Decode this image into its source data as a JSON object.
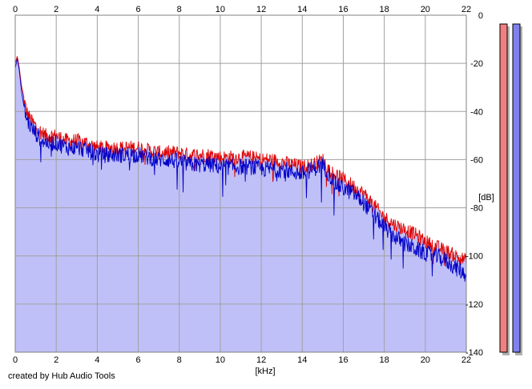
{
  "chart_data": {
    "type": "area",
    "xlabel": "[kHz]",
    "ylabel": "[dB]",
    "xlim": [
      0,
      22
    ],
    "ylim": [
      -140,
      0
    ],
    "x_ticks": [
      0,
      2,
      4,
      6,
      8,
      10,
      12,
      14,
      16,
      18,
      20,
      22
    ],
    "y_ticks": [
      0,
      -20,
      -40,
      -60,
      -80,
      -100,
      -120,
      -140
    ],
    "grid": true,
    "series": [
      {
        "color": "#e00000",
        "points": [
          [
            0.0,
            -20
          ],
          [
            0.1,
            -17
          ],
          [
            0.2,
            -22
          ],
          [
            0.3,
            -29
          ],
          [
            0.4,
            -34
          ],
          [
            0.5,
            -38
          ],
          [
            0.6,
            -41
          ],
          [
            0.8,
            -44
          ],
          [
            1.0,
            -46
          ],
          [
            1.2,
            -48
          ],
          [
            1.5,
            -50
          ],
          [
            2.0,
            -50
          ],
          [
            2.5,
            -52
          ],
          [
            3.0,
            -52
          ],
          [
            3.5,
            -53
          ],
          [
            4.0,
            -55
          ],
          [
            4.5,
            -55
          ],
          [
            5.0,
            -55
          ],
          [
            5.5,
            -55
          ],
          [
            6.0,
            -55
          ],
          [
            6.5,
            -56
          ],
          [
            7.0,
            -57
          ],
          [
            7.5,
            -57
          ],
          [
            8.0,
            -57
          ],
          [
            8.5,
            -58
          ],
          [
            9.0,
            -58
          ],
          [
            9.5,
            -58
          ],
          [
            10.0,
            -59
          ],
          [
            10.5,
            -59
          ],
          [
            11.0,
            -59
          ],
          [
            11.5,
            -59
          ],
          [
            12.0,
            -60
          ],
          [
            12.5,
            -60
          ],
          [
            13.0,
            -61
          ],
          [
            13.5,
            -62
          ],
          [
            14.0,
            -63
          ],
          [
            14.5,
            -62
          ],
          [
            15.0,
            -60
          ],
          [
            15.3,
            -64
          ],
          [
            15.6,
            -66
          ],
          [
            16.0,
            -68
          ],
          [
            16.5,
            -71
          ],
          [
            17.0,
            -74
          ],
          [
            17.5,
            -79
          ],
          [
            18.0,
            -84
          ],
          [
            18.5,
            -87
          ],
          [
            19.0,
            -89
          ],
          [
            19.5,
            -91
          ],
          [
            20.0,
            -94
          ],
          [
            20.5,
            -96
          ],
          [
            21.0,
            -98
          ],
          [
            21.5,
            -100
          ],
          [
            22.0,
            -102
          ]
        ]
      },
      {
        "color": "#0000c8",
        "points": [
          [
            0.0,
            -22
          ],
          [
            0.1,
            -18
          ],
          [
            0.2,
            -23
          ],
          [
            0.3,
            -31
          ],
          [
            0.4,
            -37
          ],
          [
            0.5,
            -41
          ],
          [
            0.6,
            -44
          ],
          [
            0.8,
            -47
          ],
          [
            1.0,
            -49
          ],
          [
            1.2,
            -51
          ],
          [
            1.5,
            -53
          ],
          [
            2.0,
            -53
          ],
          [
            2.5,
            -55
          ],
          [
            3.0,
            -55
          ],
          [
            3.5,
            -56
          ],
          [
            4.0,
            -58
          ],
          [
            4.5,
            -58
          ],
          [
            5.0,
            -58
          ],
          [
            5.5,
            -58
          ],
          [
            6.0,
            -58
          ],
          [
            6.5,
            -59
          ],
          [
            7.0,
            -60
          ],
          [
            7.5,
            -60
          ],
          [
            8.0,
            -61
          ],
          [
            8.5,
            -62
          ],
          [
            9.0,
            -62
          ],
          [
            9.5,
            -62
          ],
          [
            10.0,
            -63
          ],
          [
            10.5,
            -63
          ],
          [
            11.0,
            -63
          ],
          [
            11.5,
            -63
          ],
          [
            12.0,
            -64
          ],
          [
            12.5,
            -64
          ],
          [
            13.0,
            -64
          ],
          [
            13.5,
            -65
          ],
          [
            14.0,
            -66
          ],
          [
            14.5,
            -64
          ],
          [
            15.0,
            -62
          ],
          [
            15.3,
            -66
          ],
          [
            15.6,
            -70
          ],
          [
            16.0,
            -72
          ],
          [
            16.5,
            -74
          ],
          [
            17.0,
            -78
          ],
          [
            17.5,
            -83
          ],
          [
            18.0,
            -88
          ],
          [
            18.5,
            -92
          ],
          [
            19.0,
            -95
          ],
          [
            19.5,
            -97
          ],
          [
            20.0,
            -99
          ],
          [
            20.5,
            -100
          ],
          [
            21.0,
            -102
          ],
          [
            21.5,
            -105
          ],
          [
            22.0,
            -108
          ]
        ]
      }
    ],
    "fill_color": "#c0c0f8",
    "meter_colors": [
      "#f08080",
      "#8080f0"
    ]
  },
  "footer": {
    "credit": "created by Hub Audio Tools"
  }
}
